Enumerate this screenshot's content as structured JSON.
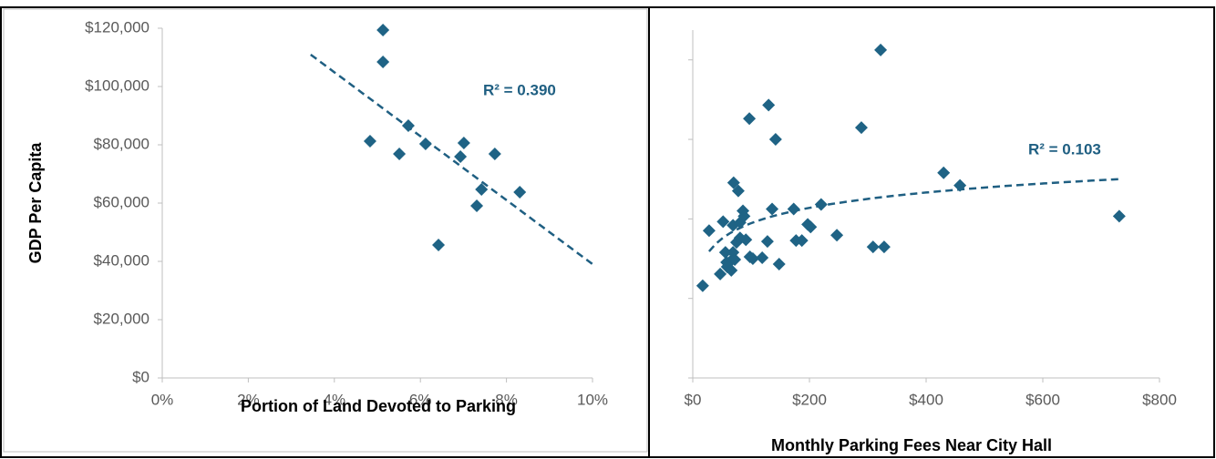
{
  "chart_data": [
    {
      "type": "scatter",
      "color": "#1f6385",
      "x_label": "Portion of Land Devoted to Parking",
      "y_label": "GDP Per Capita",
      "annotation": "R² = 0.390",
      "x": [
        5.13,
        5.13,
        4.83,
        5.51,
        5.72,
        6.12,
        7.01,
        6.93,
        7.73,
        7.42,
        7.31,
        8.31,
        6.42
      ],
      "values": [
        119375,
        108437,
        81250,
        76875,
        86563,
        80313,
        80625,
        75938,
        76875,
        64688,
        59063,
        63750,
        45625
      ],
      "trendline": {
        "type": "linear",
        "intercept": 148786,
        "slope": -10971,
        "xrange": [
          3.45,
          10
        ]
      },
      "xlim": [
        0,
        10
      ],
      "xticks": [
        {
          "value": 0,
          "label": "0%"
        },
        {
          "value": 2,
          "label": "2%"
        },
        {
          "value": 4,
          "label": "4%"
        },
        {
          "value": 6,
          "label": "6%"
        },
        {
          "value": 8,
          "label": "8%"
        },
        {
          "value": 10,
          "label": "10%"
        }
      ],
      "ylim": [
        0,
        120000
      ],
      "yticks": [
        {
          "value": 0,
          "label": "$0"
        },
        {
          "value": 20000,
          "label": "$20,000"
        },
        {
          "value": 40000,
          "label": "$40,000"
        },
        {
          "value": 60000,
          "label": "$60,000"
        },
        {
          "value": 80000,
          "label": "$80,000"
        },
        {
          "value": 100000,
          "label": "$100,000"
        },
        {
          "value": 120000,
          "label": "$120,000"
        }
      ],
      "show_ytick_labels": true
    },
    {
      "type": "scatter",
      "color": "#1f6385",
      "x_label": "Monthly Parking Fees Near City Hall",
      "annotation": "R² = 0.103",
      "x": [
        28,
        52,
        56,
        58,
        70,
        78,
        69,
        81,
        86,
        88,
        75,
        69,
        66,
        59,
        72,
        81,
        91,
        98,
        103,
        17,
        97,
        130,
        142,
        136,
        128,
        119,
        148,
        173,
        177,
        187,
        197,
        202,
        220,
        247,
        289,
        322,
        309,
        328,
        430,
        458,
        731,
        66,
        47
      ],
      "values": [
        57045,
        59318,
        51590,
        49090,
        69090,
        67045,
        58409,
        59091,
        62045,
        60681,
        54091,
        51590,
        49545,
        47955,
        49773,
        55227,
        54773,
        50454,
        50000,
        43182,
        85227,
        88636,
        80000,
        62500,
        54318,
        50227,
        48636,
        62500,
        54545,
        54545,
        58636,
        57955,
        63636,
        55909,
        82955,
        102500,
        52955,
        52955,
        71591,
        68409,
        60682,
        47045,
        46136
      ],
      "trendline": {
        "type": "log",
        "intercept": 33245,
        "slope": 5574,
        "xrange": [
          28,
          731
        ]
      },
      "xlim": [
        0,
        800
      ],
      "xticks": [
        {
          "value": 0,
          "label": "$0"
        },
        {
          "value": 200,
          "label": "$200"
        },
        {
          "value": 400,
          "label": "$400"
        },
        {
          "value": 600,
          "label": "$600"
        },
        {
          "value": 800,
          "label": "$800"
        }
      ],
      "ylim": [
        20000,
        107500
      ],
      "yticks": [
        20000,
        40000,
        60000,
        80000,
        100000
      ],
      "show_ytick_labels": false
    }
  ]
}
